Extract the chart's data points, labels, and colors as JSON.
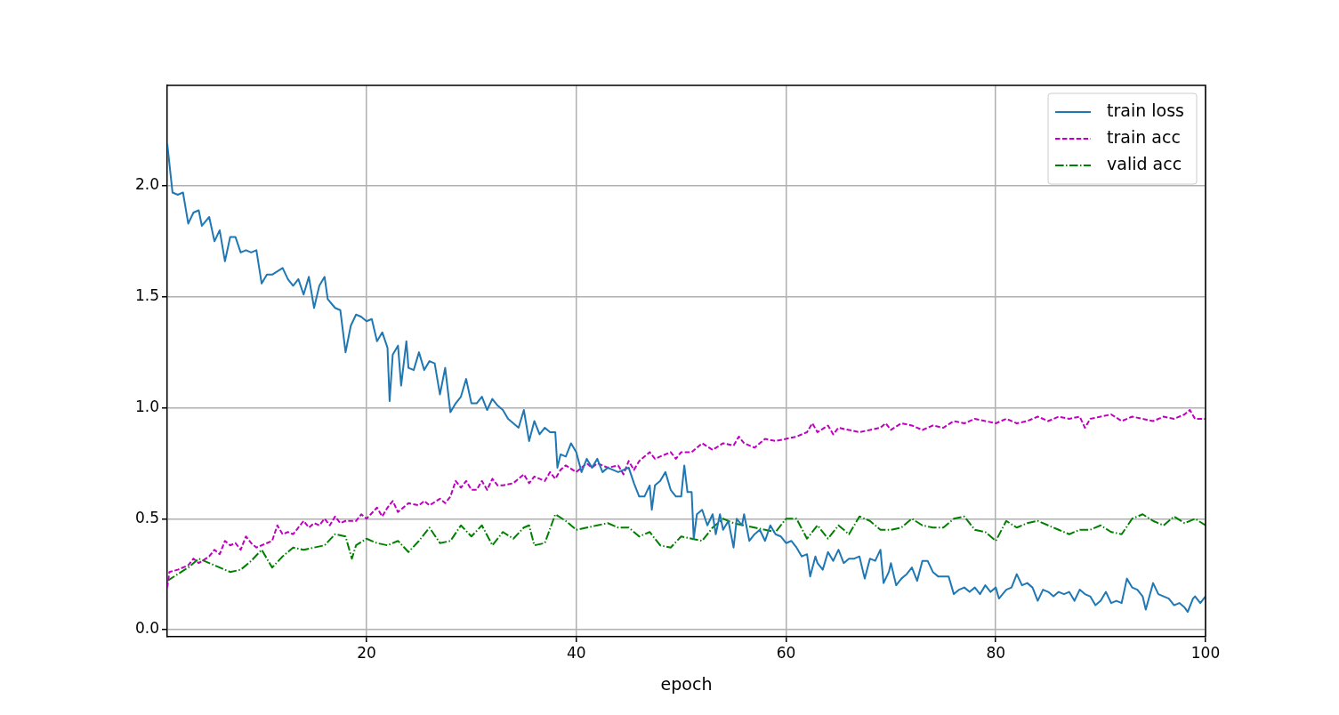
{
  "chart_data": {
    "type": "line",
    "xlabel": "epoch",
    "xlim": [
      1,
      100
    ],
    "ylim": [
      -0.032,
      2.453
    ],
    "xticks": [
      20,
      40,
      60,
      80,
      100
    ],
    "yticks": [
      {
        "value": 0,
        "label": "0.0"
      },
      {
        "value": 0.5,
        "label": "0.5"
      },
      {
        "value": 1,
        "label": "1.0"
      },
      {
        "value": 1.5,
        "label": "1.5"
      },
      {
        "value": 2,
        "label": "2.0"
      }
    ],
    "grid": true,
    "legend": "top right",
    "marker": "none",
    "series": [
      {
        "name": "train loss",
        "color": "#1f77b4",
        "line_style": "solid",
        "x": [
          1,
          1.5,
          2,
          2.5,
          3,
          3.5,
          4,
          4.3,
          5,
          5.5,
          6,
          6.5,
          7,
          7.5,
          8,
          8.5,
          9,
          9.5,
          10,
          10.5,
          11,
          12,
          12.5,
          13,
          13.5,
          14,
          14.5,
          15,
          15.5,
          16,
          16.3,
          17,
          17.5,
          18,
          18.5,
          19,
          19.5,
          20,
          20.5,
          21,
          21.5,
          22,
          22.2,
          22.5,
          23,
          23.3,
          23.8,
          24,
          24.5,
          25,
          25.5,
          26,
          26.5,
          27,
          27.5,
          28,
          28.5,
          29,
          29.5,
          30,
          30.5,
          31,
          31.5,
          32,
          32.5,
          33,
          33.5,
          34,
          34.5,
          35,
          35.5,
          36,
          36.5,
          37,
          37.5,
          38,
          38.2,
          38.5,
          39,
          39.5,
          40,
          40.5,
          41,
          41.5,
          42,
          42.5,
          43,
          43.5,
          44,
          44.5,
          45,
          45.5,
          46,
          46.5,
          47,
          47.2,
          47.5,
          48,
          48.5,
          49,
          49.5,
          50,
          50.3,
          50.6,
          51,
          51.2,
          51.5,
          52,
          52.5,
          53,
          53.3,
          53.7,
          54,
          54.5,
          55,
          55.3,
          55.8,
          56,
          56.5,
          57,
          57.5,
          58,
          58.5,
          59,
          59.5,
          60,
          60.5,
          61,
          61.5,
          62,
          62.3,
          62.8,
          63,
          63.5,
          64,
          64.5,
          65,
          65.5,
          66,
          66.5,
          67,
          67.5,
          68,
          68.5,
          69,
          69.3,
          69.8,
          70,
          70.5,
          71,
          71.5,
          72,
          72.5,
          73,
          73.5,
          74,
          74.5,
          75,
          75.5,
          76,
          76.5,
          77,
          77.5,
          78,
          78.5,
          79,
          79.5,
          80,
          80.3,
          81,
          81.5,
          82,
          82.5,
          83,
          83.5,
          84,
          84.5,
          85,
          85.5,
          86,
          86.5,
          87,
          87.5,
          88,
          88.5,
          89,
          89.5,
          90,
          90.5,
          91,
          91.5,
          92,
          92.5,
          93,
          93.5,
          94,
          94.3,
          95,
          95.5,
          96,
          96.5,
          97,
          97.5,
          98,
          98.3,
          98.8,
          99,
          99.5,
          100
        ],
        "values": [
          2.19,
          1.97,
          1.96,
          1.97,
          1.83,
          1.88,
          1.89,
          1.82,
          1.86,
          1.75,
          1.8,
          1.66,
          1.77,
          1.77,
          1.7,
          1.71,
          1.7,
          1.71,
          1.56,
          1.6,
          1.6,
          1.63,
          1.58,
          1.55,
          1.58,
          1.51,
          1.59,
          1.45,
          1.55,
          1.59,
          1.49,
          1.45,
          1.44,
          1.25,
          1.37,
          1.42,
          1.41,
          1.39,
          1.4,
          1.3,
          1.34,
          1.27,
          1.03,
          1.24,
          1.28,
          1.1,
          1.3,
          1.18,
          1.17,
          1.25,
          1.17,
          1.21,
          1.2,
          1.06,
          1.18,
          0.98,
          1.02,
          1.05,
          1.13,
          1.02,
          1.02,
          1.05,
          0.99,
          1.04,
          1.01,
          0.99,
          0.95,
          0.93,
          0.91,
          0.99,
          0.85,
          0.94,
          0.88,
          0.91,
          0.89,
          0.89,
          0.73,
          0.79,
          0.78,
          0.84,
          0.8,
          0.71,
          0.77,
          0.73,
          0.77,
          0.71,
          0.73,
          0.72,
          0.71,
          0.72,
          0.73,
          0.66,
          0.6,
          0.6,
          0.65,
          0.54,
          0.65,
          0.67,
          0.71,
          0.63,
          0.6,
          0.6,
          0.74,
          0.62,
          0.62,
          0.41,
          0.52,
          0.54,
          0.47,
          0.52,
          0.43,
          0.52,
          0.45,
          0.49,
          0.37,
          0.5,
          0.47,
          0.52,
          0.4,
          0.43,
          0.45,
          0.4,
          0.47,
          0.43,
          0.42,
          0.39,
          0.4,
          0.37,
          0.33,
          0.34,
          0.24,
          0.33,
          0.3,
          0.27,
          0.35,
          0.31,
          0.36,
          0.3,
          0.32,
          0.32,
          0.33,
          0.23,
          0.32,
          0.31,
          0.36,
          0.21,
          0.26,
          0.3,
          0.2,
          0.23,
          0.25,
          0.28,
          0.22,
          0.31,
          0.31,
          0.26,
          0.24,
          0.24,
          0.24,
          0.16,
          0.18,
          0.19,
          0.17,
          0.19,
          0.16,
          0.2,
          0.17,
          0.19,
          0.14,
          0.18,
          0.19,
          0.25,
          0.2,
          0.21,
          0.19,
          0.13,
          0.18,
          0.17,
          0.15,
          0.17,
          0.16,
          0.17,
          0.13,
          0.18,
          0.16,
          0.15,
          0.11,
          0.13,
          0.17,
          0.12,
          0.13,
          0.12,
          0.23,
          0.19,
          0.18,
          0.15,
          0.09,
          0.21,
          0.16,
          0.15,
          0.14,
          0.11,
          0.12,
          0.1,
          0.08,
          0.14,
          0.15,
          0.12,
          0.15
        ]
      },
      {
        "name": "train acc",
        "color": "#bf00bf",
        "line_style": "dashed",
        "x": [
          1,
          1.2,
          2,
          3,
          3.5,
          4,
          5,
          5.5,
          6,
          6.5,
          7,
          7.5,
          8,
          8.5,
          9,
          9.5,
          10,
          11,
          11.5,
          12,
          12.5,
          13,
          14,
          14.5,
          15,
          15.5,
          16,
          16.5,
          17,
          17.5,
          18,
          19,
          19.5,
          20,
          21,
          21.5,
          22,
          22.5,
          23,
          24,
          25,
          25.5,
          26,
          27,
          27.5,
          28,
          28.5,
          29,
          29.5,
          30,
          30.5,
          31,
          31.5,
          32,
          32.5,
          33,
          34,
          35,
          35.5,
          36,
          37,
          37.5,
          38,
          38.5,
          39,
          40,
          41,
          41.5,
          42,
          43,
          44,
          44.5,
          45,
          45.5,
          46,
          47,
          47.5,
          48,
          49,
          49.5,
          50,
          51,
          52,
          53,
          54,
          55,
          55.5,
          56,
          57,
          58,
          59,
          60,
          61,
          62,
          62.5,
          63,
          64,
          64.5,
          65,
          66,
          67,
          68,
          69,
          69.5,
          70,
          71,
          72,
          73,
          74,
          75,
          76,
          77,
          78,
          79,
          80,
          81,
          82,
          83,
          84,
          85,
          86,
          87,
          88,
          88.5,
          89,
          90,
          91,
          92,
          93,
          94,
          95,
          96,
          97,
          98,
          98.5,
          99,
          100
        ],
        "values": [
          0.19,
          0.26,
          0.27,
          0.29,
          0.32,
          0.3,
          0.33,
          0.36,
          0.34,
          0.4,
          0.38,
          0.39,
          0.36,
          0.42,
          0.39,
          0.37,
          0.38,
          0.4,
          0.47,
          0.43,
          0.44,
          0.43,
          0.49,
          0.46,
          0.48,
          0.47,
          0.5,
          0.47,
          0.51,
          0.48,
          0.49,
          0.49,
          0.52,
          0.5,
          0.55,
          0.51,
          0.55,
          0.58,
          0.53,
          0.57,
          0.56,
          0.58,
          0.56,
          0.59,
          0.57,
          0.6,
          0.67,
          0.64,
          0.67,
          0.63,
          0.63,
          0.67,
          0.63,
          0.68,
          0.65,
          0.65,
          0.66,
          0.7,
          0.66,
          0.69,
          0.67,
          0.71,
          0.68,
          0.72,
          0.74,
          0.71,
          0.75,
          0.73,
          0.75,
          0.73,
          0.74,
          0.7,
          0.76,
          0.72,
          0.76,
          0.8,
          0.77,
          0.78,
          0.8,
          0.77,
          0.8,
          0.8,
          0.84,
          0.81,
          0.84,
          0.83,
          0.87,
          0.84,
          0.82,
          0.86,
          0.85,
          0.86,
          0.87,
          0.89,
          0.93,
          0.89,
          0.92,
          0.88,
          0.91,
          0.9,
          0.89,
          0.9,
          0.91,
          0.93,
          0.9,
          0.93,
          0.92,
          0.9,
          0.92,
          0.91,
          0.94,
          0.93,
          0.95,
          0.94,
          0.93,
          0.95,
          0.93,
          0.94,
          0.96,
          0.94,
          0.96,
          0.95,
          0.96,
          0.91,
          0.95,
          0.96,
          0.97,
          0.94,
          0.96,
          0.95,
          0.94,
          0.96,
          0.95,
          0.97,
          0.99,
          0.95,
          0.95
        ]
      },
      {
        "name": "valid acc",
        "color": "#008000",
        "line_style": "dashdot",
        "x": [
          1,
          2,
          3,
          4,
          5,
          6,
          7,
          8,
          9,
          10,
          11,
          12,
          13,
          14,
          15,
          16,
          17,
          18,
          18.6,
          19,
          20,
          21,
          22,
          23,
          24,
          25,
          26,
          27,
          28,
          29,
          30,
          31,
          32,
          33,
          34,
          35,
          35.5,
          36,
          37,
          38,
          39,
          40,
          41,
          42,
          43,
          44,
          45,
          46,
          47,
          48,
          49,
          50,
          51,
          52,
          53,
          54,
          55,
          56,
          57,
          58,
          59,
          60,
          61,
          62,
          63,
          64,
          65,
          66,
          67,
          68,
          69,
          70,
          71,
          72,
          73,
          74,
          75,
          76,
          77,
          78,
          79,
          80,
          81,
          82,
          83,
          84,
          85,
          86,
          87,
          88,
          89,
          90,
          91,
          92,
          93,
          94,
          95,
          96,
          97,
          98,
          99,
          100
        ],
        "values": [
          0.22,
          0.25,
          0.28,
          0.32,
          0.3,
          0.28,
          0.26,
          0.27,
          0.31,
          0.36,
          0.28,
          0.33,
          0.37,
          0.36,
          0.37,
          0.38,
          0.43,
          0.42,
          0.32,
          0.38,
          0.41,
          0.39,
          0.38,
          0.4,
          0.35,
          0.4,
          0.46,
          0.39,
          0.4,
          0.47,
          0.42,
          0.47,
          0.38,
          0.44,
          0.41,
          0.46,
          0.47,
          0.38,
          0.39,
          0.52,
          0.49,
          0.45,
          0.46,
          0.47,
          0.48,
          0.46,
          0.46,
          0.42,
          0.44,
          0.38,
          0.37,
          0.42,
          0.41,
          0.4,
          0.46,
          0.5,
          0.48,
          0.47,
          0.46,
          0.45,
          0.44,
          0.5,
          0.5,
          0.41,
          0.47,
          0.41,
          0.47,
          0.43,
          0.51,
          0.49,
          0.45,
          0.45,
          0.46,
          0.5,
          0.47,
          0.46,
          0.46,
          0.5,
          0.51,
          0.45,
          0.44,
          0.4,
          0.49,
          0.46,
          0.48,
          0.49,
          0.47,
          0.45,
          0.43,
          0.45,
          0.45,
          0.47,
          0.44,
          0.43,
          0.5,
          0.52,
          0.49,
          0.47,
          0.51,
          0.48,
          0.5,
          0.47
        ]
      }
    ]
  }
}
